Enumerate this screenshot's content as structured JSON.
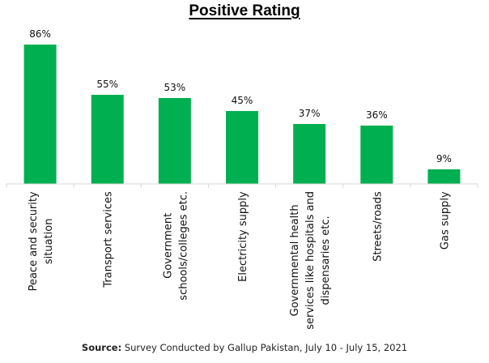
{
  "chart_data": {
    "type": "bar",
    "title": "Positive Rating",
    "categories": [
      "Peace and security situation",
      "Transport services",
      "Government schools/colleges etc.",
      "Electricity supply",
      "Governmental health services like hospitals and dispensaries etc.",
      "Streets/roads",
      "Gas supply"
    ],
    "category_label_lines": [
      [
        "Peace and security",
        "situation"
      ],
      [
        "Transport services"
      ],
      [
        "Government",
        "schools/colleges etc."
      ],
      [
        "Electricity supply"
      ],
      [
        "Governmental health",
        "services like hospitals and",
        "dispensaries etc."
      ],
      [
        "Streets/roads"
      ],
      [
        "Gas supply"
      ]
    ],
    "values": [
      86,
      55,
      53,
      45,
      37,
      36,
      9
    ],
    "data_labels": [
      "86%",
      "55%",
      "53%",
      "45%",
      "37%",
      "36%",
      "9%"
    ],
    "xlabel": "",
    "ylabel": "",
    "ylim": [
      0,
      86
    ],
    "grid": false,
    "legend": "none",
    "bar_color": "#00b050"
  },
  "source": {
    "label": "Source:",
    "text": " Survey Conducted by Gallup Pakistan, July 10 - July 15, 2021"
  }
}
